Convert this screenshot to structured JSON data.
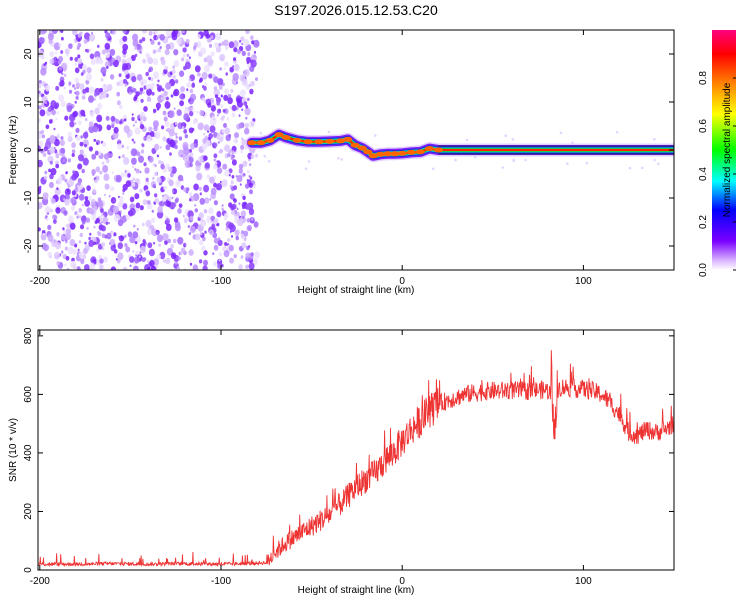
{
  "title": "S197.2026.015.12.53.C20",
  "chart_data": [
    {
      "type": "heatmap",
      "panel": "spectrogram",
      "xlabel": "Height of straight line (km)",
      "ylabel": "Frequency (Hz)",
      "xlim": [
        -201,
        150
      ],
      "ylim": [
        -25,
        25
      ],
      "xticks": [
        -200,
        -100,
        0,
        100
      ],
      "xtick_labels": [
        "-200",
        "-100",
        "0",
        "100"
      ],
      "yticks": [
        -20,
        -10,
        0,
        10,
        20
      ],
      "ytick_labels": [
        "-20",
        "-10",
        "0",
        "10",
        "20"
      ],
      "noise_region_x": [
        -201,
        -80
      ],
      "trace": {
        "x": [
          -83,
          -78,
          -73,
          -68,
          -64,
          -58,
          -52,
          -46,
          -40,
          -34,
          -30,
          -26,
          -22,
          -19,
          -16,
          -12,
          -8,
          -4,
          0,
          5,
          10,
          15,
          20,
          40,
          60,
          80,
          100,
          120,
          150
        ],
        "y": [
          1.5,
          1.5,
          2.0,
          3.2,
          2.6,
          2.0,
          1.7,
          1.7,
          1.8,
          1.9,
          2.2,
          1.0,
          0.4,
          -0.4,
          -1.2,
          -0.9,
          -0.8,
          -0.8,
          -0.7,
          -0.5,
          -0.4,
          0.3,
          0.0,
          0.0,
          0.0,
          0.0,
          0.0,
          0.0,
          0.0
        ]
      },
      "colorbar": {
        "label": "Normalized spectral amplitude",
        "range": [
          0,
          1
        ],
        "ticks": [
          0.0,
          0.2,
          0.4,
          0.6,
          0.8
        ],
        "tick_labels": [
          "0.0",
          "0.2",
          "0.4",
          "0.6",
          "0.8"
        ],
        "colors": [
          "#ffffff",
          "#7b00ff",
          "#0000ff",
          "#00ffff",
          "#00ff00",
          "#ffff00",
          "#ff8000",
          "#ff0000",
          "#ff0080"
        ]
      }
    },
    {
      "type": "line",
      "panel": "snr",
      "xlabel": "Height of straight line (km)",
      "ylabel": "SNR (10 * v/v)",
      "xlim": [
        -201,
        150
      ],
      "ylim": [
        0,
        820
      ],
      "xticks": [
        -200,
        -100,
        0,
        100
      ],
      "xtick_labels": [
        "-200",
        "-100",
        "0",
        "100"
      ],
      "yticks": [
        0,
        200,
        400,
        600,
        800
      ],
      "ytick_labels": [
        "0",
        "200",
        "400",
        "600",
        "800"
      ],
      "series": [
        {
          "name": "SNR",
          "color": "#ee3333",
          "x": [
            -201,
            -180,
            -160,
            -140,
            -120,
            -100,
            -85,
            -75,
            -70,
            -65,
            -60,
            -55,
            -50,
            -45,
            -40,
            -35,
            -30,
            -25,
            -20,
            -15,
            -10,
            -5,
            0,
            5,
            10,
            15,
            20,
            25,
            30,
            35,
            40,
            45,
            50,
            55,
            60,
            65,
            70,
            75,
            80,
            82,
            84,
            86,
            88,
            90,
            95,
            100,
            105,
            110,
            115,
            120,
            125,
            130,
            135,
            140,
            145,
            150
          ],
          "y": [
            20,
            20,
            22,
            20,
            22,
            20,
            22,
            25,
            60,
            90,
            110,
            130,
            150,
            170,
            190,
            220,
            250,
            285,
            310,
            330,
            370,
            400,
            440,
            480,
            510,
            545,
            565,
            580,
            590,
            600,
            605,
            610,
            612,
            612,
            615,
            612,
            612,
            615,
            615,
            600,
            400,
            620,
            625,
            625,
            620,
            618,
            612,
            600,
            570,
            530,
            470,
            460,
            480,
            470,
            480,
            500
          ]
        }
      ]
    }
  ]
}
